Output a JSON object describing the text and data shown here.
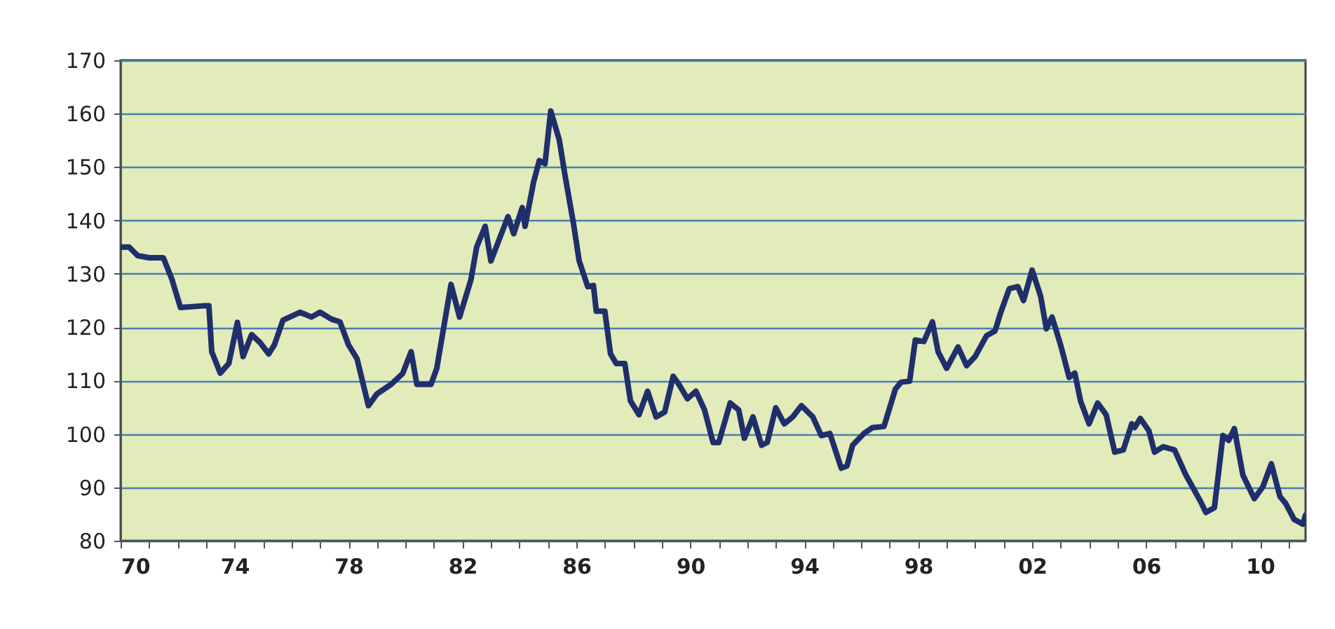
{
  "chart_data": {
    "type": "line",
    "grid": "y",
    "marker": "none",
    "line_style": "solid",
    "xlim": [
      1970,
      2011.6
    ],
    "xticks": [
      {
        "value": 1970,
        "label": "70"
      },
      {
        "value": 1971,
        "label": null
      },
      {
        "value": 1972,
        "label": null
      },
      {
        "value": 1973,
        "label": null
      },
      {
        "value": 1974,
        "label": "74"
      },
      {
        "value": 1975,
        "label": null
      },
      {
        "value": 1976,
        "label": null
      },
      {
        "value": 1977,
        "label": null
      },
      {
        "value": 1978,
        "label": "78"
      },
      {
        "value": 1979,
        "label": null
      },
      {
        "value": 1980,
        "label": null
      },
      {
        "value": 1981,
        "label": null
      },
      {
        "value": 1982,
        "label": "82"
      },
      {
        "value": 1983,
        "label": null
      },
      {
        "value": 1984,
        "label": null
      },
      {
        "value": 1985,
        "label": null
      },
      {
        "value": 1986,
        "label": "86"
      },
      {
        "value": 1987,
        "label": null
      },
      {
        "value": 1988,
        "label": null
      },
      {
        "value": 1989,
        "label": null
      },
      {
        "value": 1990,
        "label": "90"
      },
      {
        "value": 1991,
        "label": null
      },
      {
        "value": 1992,
        "label": null
      },
      {
        "value": 1993,
        "label": null
      },
      {
        "value": 1994,
        "label": "94"
      },
      {
        "value": 1995,
        "label": null
      },
      {
        "value": 1996,
        "label": null
      },
      {
        "value": 1997,
        "label": null
      },
      {
        "value": 1998,
        "label": "98"
      },
      {
        "value": 1999,
        "label": null
      },
      {
        "value": 2000,
        "label": null
      },
      {
        "value": 2001,
        "label": null
      },
      {
        "value": 2002,
        "label": "02"
      },
      {
        "value": 2003,
        "label": null
      },
      {
        "value": 2004,
        "label": null
      },
      {
        "value": 2005,
        "label": null
      },
      {
        "value": 2006,
        "label": "06"
      },
      {
        "value": 2007,
        "label": null
      },
      {
        "value": 2008,
        "label": null
      },
      {
        "value": 2009,
        "label": null
      },
      {
        "value": 2010,
        "label": "10"
      },
      {
        "value": 2011,
        "label": null
      }
    ],
    "ylim": [
      80,
      170
    ],
    "yticks": [
      80,
      90,
      100,
      110,
      120,
      130,
      140,
      150,
      160,
      170
    ],
    "series": [
      {
        "color": "#1f2f6b",
        "x": [
          1970,
          1970.3,
          1970.6,
          1971,
          1971.5,
          1971.8,
          1972.1,
          1972.9,
          1973.1,
          1973.2,
          1973.5,
          1973.8,
          1974.1,
          1974.3,
          1974.6,
          1974.9,
          1975.2,
          1975.4,
          1975.7,
          1976.3,
          1976.7,
          1977,
          1977.4,
          1977.7,
          1978,
          1978.3,
          1978.7,
          1979,
          1979.5,
          1979.9,
          1980.2,
          1980.4,
          1980.9,
          1981.1,
          1981.6,
          1981.9,
          1982.3,
          1982.5,
          1982.8,
          1983,
          1983.6,
          1983.8,
          1984.1,
          1984.2,
          1984.5,
          1984.7,
          1984.9,
          1985.1,
          1985.4,
          1985.6,
          1985.9,
          1986.1,
          1986.4,
          1986.6,
          1986.7,
          1987,
          1987.2,
          1987.4,
          1987.7,
          1987.9,
          1988.2,
          1988.5,
          1988.8,
          1989.1,
          1989.4,
          1989.6,
          1989.9,
          1990.2,
          1990.5,
          1990.8,
          1991,
          1991.4,
          1991.7,
          1991.9,
          1992.2,
          1992.5,
          1992.7,
          1993,
          1993.3,
          1993.6,
          1993.9,
          1994.3,
          1994.6,
          1994.9,
          1995.3,
          1995.5,
          1995.7,
          1996.1,
          1996.4,
          1996.8,
          1997.2,
          1997.4,
          1997.7,
          1997.9,
          1998.2,
          1998.5,
          1998.7,
          1999,
          1999.4,
          1999.7,
          2000,
          2000.4,
          2000.7,
          2000.9,
          2001.2,
          2001.5,
          2001.7,
          2002,
          2002.3,
          2002.5,
          2002.7,
          2003,
          2003.3,
          2003.5,
          2003.7,
          2004,
          2004.3,
          2004.6,
          2004.9,
          2005.2,
          2005.5,
          2005.6,
          2005.8,
          2006.1,
          2006.3,
          2006.6,
          2007,
          2007.4,
          2007.9,
          2008.1,
          2008.4,
          2008.7,
          2008.9,
          2009.1,
          2009.4,
          2009.8,
          2010.1,
          2010.4,
          2010.7,
          2010.9,
          2011.2,
          2011.5,
          2011.6
        ],
        "values": [
          135,
          135,
          133.4,
          133,
          133,
          129,
          123.7,
          124,
          124,
          115.4,
          111.4,
          113.2,
          120.9,
          114.5,
          118.6,
          117.1,
          115,
          116.7,
          121.3,
          122.8,
          121.9,
          122.8,
          121.5,
          121,
          116.7,
          114.1,
          105.3,
          107.5,
          109.3,
          111.3,
          115.4,
          109.3,
          109.3,
          112.3,
          128,
          121.9,
          128.9,
          135,
          138.9,
          132.4,
          140.7,
          137.5,
          142.4,
          138.9,
          147.2,
          151.2,
          150.6,
          160.5,
          155.1,
          148.5,
          139.4,
          132.4,
          127.6,
          127.8,
          123,
          123,
          115,
          113.2,
          113.2,
          106.2,
          103.6,
          108,
          103.2,
          104.1,
          110.8,
          109.3,
          106.6,
          108,
          104.5,
          98.4,
          98.4,
          105.8,
          104.5,
          99.2,
          103.2,
          97.9,
          98.4,
          104.9,
          101.9,
          103.2,
          105.3,
          103.2,
          99.7,
          100.1,
          93.6,
          94,
          97.9,
          100.1,
          101.2,
          101.4,
          108.4,
          109.7,
          109.9,
          117.6,
          117.3,
          121,
          115.4,
          112.3,
          116.3,
          112.8,
          114.5,
          118.4,
          119.3,
          122.8,
          127.2,
          127.6,
          125,
          130.7,
          125.8,
          119.7,
          121.9,
          116.7,
          110.6,
          111.4,
          106.2,
          101.9,
          105.8,
          103.6,
          96.6,
          97,
          101.9,
          101.2,
          102.9,
          100.6,
          96.6,
          97.6,
          97,
          92.3,
          87.5,
          85.3,
          86.2,
          99.7,
          98.8,
          101,
          92.3,
          87.9,
          90.1,
          94.4,
          88.3,
          87,
          84,
          83.1,
          84.8
        ]
      }
    ]
  }
}
